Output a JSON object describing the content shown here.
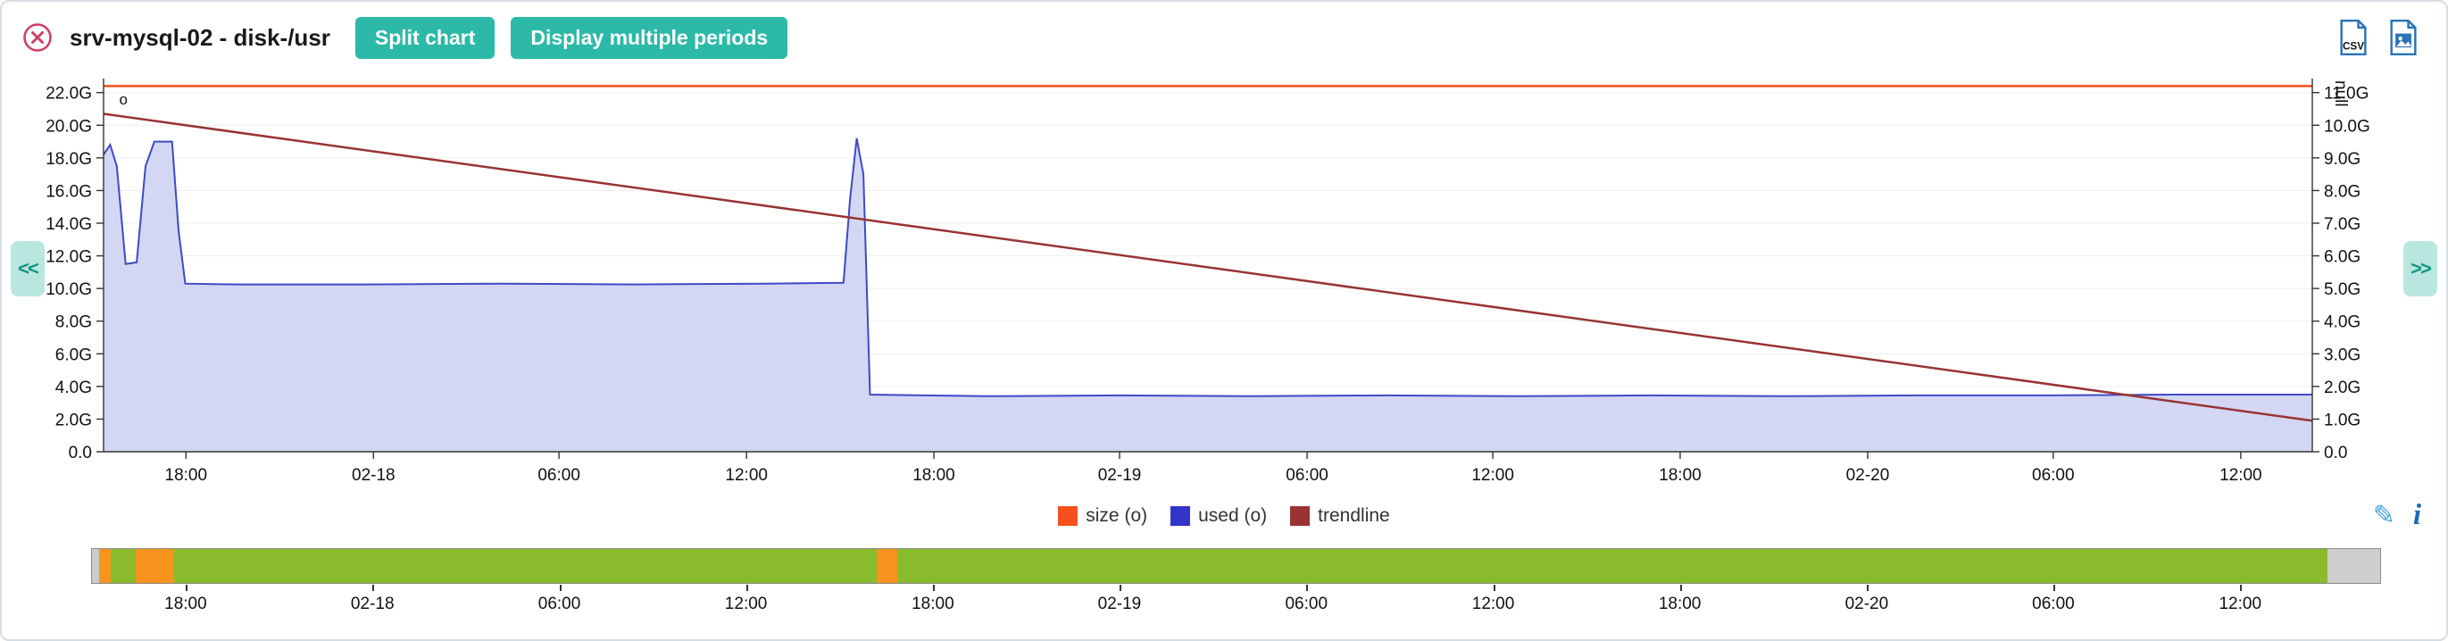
{
  "header": {
    "title": "srv-mysql-02 - disk-/usr",
    "split_chart_label": "Split chart",
    "multi_period_label": "Display multiple periods"
  },
  "icons": {
    "edit": "✎",
    "info": "i",
    "csv_label": "CSV"
  },
  "nav": {
    "prev_label": "<<",
    "next_label": ">>"
  },
  "colors": {
    "accent_teal": "#2cb9a8",
    "close_red": "#d04064",
    "export_blue": "#2a72b4",
    "edit_blue": "#45a3d9",
    "info_blue": "#1a6ab0",
    "nav_bg": "#b9e7e0",
    "nav_text": "#13967f",
    "timeline_green": "#8abb2d",
    "timeline_orange": "#f7941e",
    "timeline_gray": "#cccccc"
  },
  "legend": {
    "items": [
      {
        "label": "size (o)",
        "color": "#f4511e"
      },
      {
        "label": "used (o)",
        "color": "#3236c8"
      },
      {
        "label": "trendline",
        "color": "#993333"
      }
    ]
  },
  "chart_data": {
    "type": "area",
    "title": "srv-mysql-02 - disk-/usr",
    "grid": true,
    "legend_position": "bottom",
    "x_axis": {
      "ticks": [
        {
          "label": "18:00",
          "f": 0.0373
        },
        {
          "label": "02-18",
          "f": 0.1222
        },
        {
          "label": "06:00",
          "f": 0.2062
        },
        {
          "label": "12:00",
          "f": 0.2911
        },
        {
          "label": "18:00",
          "f": 0.3759
        },
        {
          "label": "02-19",
          "f": 0.46
        },
        {
          "label": "06:00",
          "f": 0.5449
        },
        {
          "label": "12:00",
          "f": 0.629
        },
        {
          "label": "18:00",
          "f": 0.7138
        },
        {
          "label": "02-20",
          "f": 0.7987
        },
        {
          "label": "06:00",
          "f": 0.8827
        },
        {
          "label": "12:00",
          "f": 0.9676
        }
      ]
    },
    "left_axis": {
      "max": 22.86,
      "ticks": [
        {
          "v": 0,
          "label": "0.0"
        },
        {
          "v": 2,
          "label": "2.0G"
        },
        {
          "v": 4,
          "label": "4.0G"
        },
        {
          "v": 6,
          "label": "6.0G"
        },
        {
          "v": 8,
          "label": "8.0G"
        },
        {
          "v": 10,
          "label": "10.0G"
        },
        {
          "v": 12,
          "label": "12.0G"
        },
        {
          "v": 14,
          "label": "14.0G"
        },
        {
          "v": 16,
          "label": "16.0G"
        },
        {
          "v": 18,
          "label": "18.0G"
        },
        {
          "v": 20,
          "label": "20.0G"
        },
        {
          "v": 22,
          "label": "22.0G"
        }
      ]
    },
    "right_axis": {
      "max": 11.43,
      "title": "null",
      "ticks": [
        {
          "v": 0,
          "label": "0.0"
        },
        {
          "v": 1,
          "label": "1.0G"
        },
        {
          "v": 2,
          "label": "2.0G"
        },
        {
          "v": 3,
          "label": "3.0G"
        },
        {
          "v": 4,
          "label": "4.0G"
        },
        {
          "v": 5,
          "label": "5.0G"
        },
        {
          "v": 6,
          "label": "6.0G"
        },
        {
          "v": 7,
          "label": "7.0G"
        },
        {
          "v": 8,
          "label": "8.0G"
        },
        {
          "v": 9,
          "label": "9.0G"
        },
        {
          "v": 10,
          "label": "10.0G"
        },
        {
          "v": 11,
          "label": "11.0G"
        }
      ]
    },
    "series": [
      {
        "name": "size (o)",
        "kind": "line",
        "axis": "left",
        "color": "#f4511e",
        "width": 2.5,
        "points": [
          [
            0,
            22.4
          ],
          [
            1,
            22.4
          ]
        ]
      },
      {
        "name": "used (o)",
        "kind": "area",
        "axis": "left",
        "color": "#3f49c6",
        "fill": "#d3d7f4",
        "width": 2,
        "points": [
          [
            0.0,
            18.2
          ],
          [
            0.003,
            18.8
          ],
          [
            0.006,
            17.5
          ],
          [
            0.01,
            11.5
          ],
          [
            0.015,
            11.6
          ],
          [
            0.019,
            17.5
          ],
          [
            0.023,
            19.0
          ],
          [
            0.031,
            19.0
          ],
          [
            0.034,
            13.5
          ],
          [
            0.037,
            10.3
          ],
          [
            0.06,
            10.25
          ],
          [
            0.12,
            10.25
          ],
          [
            0.18,
            10.3
          ],
          [
            0.24,
            10.25
          ],
          [
            0.3,
            10.3
          ],
          [
            0.335,
            10.35
          ],
          [
            0.338,
            15.5
          ],
          [
            0.341,
            19.2
          ],
          [
            0.344,
            17.0
          ],
          [
            0.347,
            3.5
          ],
          [
            0.4,
            3.4
          ],
          [
            0.46,
            3.45
          ],
          [
            0.52,
            3.4
          ],
          [
            0.58,
            3.45
          ],
          [
            0.64,
            3.4
          ],
          [
            0.7,
            3.45
          ],
          [
            0.76,
            3.4
          ],
          [
            0.82,
            3.45
          ],
          [
            0.88,
            3.45
          ],
          [
            0.94,
            3.5
          ],
          [
            1.0,
            3.5
          ]
        ]
      },
      {
        "name": "trendline",
        "kind": "line",
        "axis": "right",
        "color": "#993333",
        "width": 2.5,
        "points": [
          [
            0,
            10.35
          ],
          [
            1,
            0.95
          ]
        ]
      }
    ],
    "annotation": {
      "text": "o",
      "f": 0.009,
      "v": 21.6
    }
  },
  "timeline": {
    "segments": [
      {
        "f0": 0.0,
        "f1": 0.003,
        "color": "#cccccc"
      },
      {
        "f0": 0.003,
        "f1": 0.008,
        "color": "#f7941e"
      },
      {
        "f0": 0.008,
        "f1": 0.019,
        "color": "#8abb2d"
      },
      {
        "f0": 0.019,
        "f1": 0.036,
        "color": "#f7941e"
      },
      {
        "f0": 0.036,
        "f1": 0.343,
        "color": "#8abb2d"
      },
      {
        "f0": 0.343,
        "f1": 0.352,
        "color": "#f7941e"
      },
      {
        "f0": 0.352,
        "f1": 0.977,
        "color": "#8abb2d"
      },
      {
        "f0": 0.977,
        "f1": 1.0,
        "color": "#cfcfcf"
      }
    ],
    "ticks": [
      {
        "label": "18:00",
        "f": 0.0413
      },
      {
        "label": "02-18",
        "f": 0.1229
      },
      {
        "label": "06:00",
        "f": 0.2045
      },
      {
        "label": "12:00",
        "f": 0.286
      },
      {
        "label": "18:00",
        "f": 0.3676
      },
      {
        "label": "02-19",
        "f": 0.4491
      },
      {
        "label": "06:00",
        "f": 0.5307
      },
      {
        "label": "12:00",
        "f": 0.6123
      },
      {
        "label": "18:00",
        "f": 0.6938
      },
      {
        "label": "02-20",
        "f": 0.7754
      },
      {
        "label": "06:00",
        "f": 0.8569
      },
      {
        "label": "12:00",
        "f": 0.9385
      }
    ]
  }
}
